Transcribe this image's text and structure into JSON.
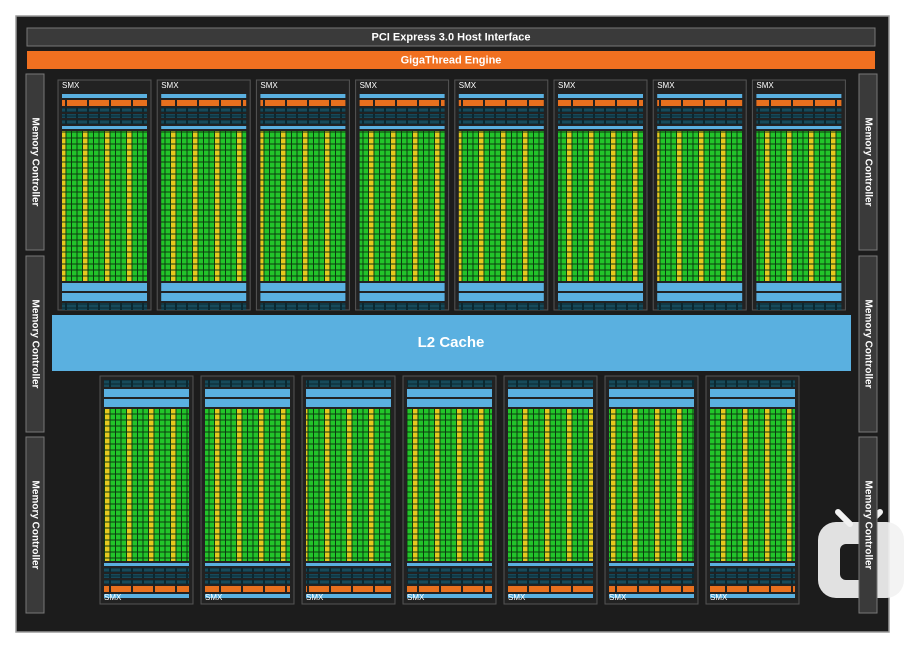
{
  "header": {
    "host_interface": "PCI Express 3.0 Host Interface",
    "engine": "GigaThread Engine"
  },
  "l2_cache": "L2 Cache",
  "memory_controllers": [
    "Memory Controller",
    "Memory Controller",
    "Memory Controller",
    "Memory Controller",
    "Memory Controller",
    "Memory Controller"
  ],
  "smx_top": [
    "SMX",
    "SMX",
    "SMX",
    "SMX",
    "SMX",
    "SMX",
    "SMX",
    "SMX"
  ],
  "smx_bottom": [
    "SMX",
    "SMX",
    "SMX",
    "SMX",
    "SMX",
    "SMX",
    "SMX"
  ]
}
